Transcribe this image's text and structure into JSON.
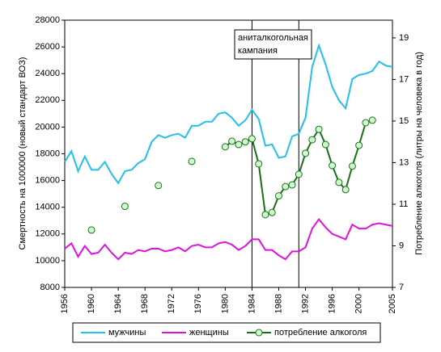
{
  "chart_data": {
    "type": "line",
    "ylabel": "Смертность на 1000000 (новый стандарт ВОЗ)",
    "y2label": "Потребление алкоголя (литры на человека в год)",
    "x": [
      1956,
      1957,
      1958,
      1959,
      1960,
      1961,
      1962,
      1963,
      1964,
      1965,
      1966,
      1967,
      1968,
      1969,
      1970,
      1971,
      1972,
      1973,
      1974,
      1975,
      1976,
      1977,
      1978,
      1979,
      1980,
      1981,
      1982,
      1983,
      1984,
      1985,
      1986,
      1987,
      1988,
      1989,
      1990,
      1991,
      1992,
      1993,
      1994,
      1995,
      1996,
      1997,
      1998,
      1999,
      2000,
      2001,
      2002,
      2003,
      2004,
      2005
    ],
    "xlim": [
      1956,
      2005
    ],
    "xticks": [
      1956,
      1960,
      1964,
      1968,
      1972,
      1976,
      1980,
      1984,
      1988,
      1992,
      1996,
      2000,
      2005
    ],
    "ylim": [
      8000,
      28000
    ],
    "yticks": [
      8000,
      10000,
      12000,
      14000,
      16000,
      18000,
      20000,
      22000,
      24000,
      26000,
      28000
    ],
    "y2lim": [
      7,
      19.85
    ],
    "y2ticks": [
      7,
      9,
      11,
      13,
      15,
      17,
      19
    ],
    "vlines": [
      1984,
      1991
    ],
    "annotation": [
      "аниталкогольная",
      "кампания"
    ],
    "legend": "bottom",
    "series": [
      {
        "name": "мужчины",
        "color": "#22c0ec",
        "values": [
          17400,
          18200,
          16700,
          17800,
          16800,
          16800,
          17400,
          16500,
          15800,
          16700,
          16800,
          17300,
          17600,
          18900,
          19400,
          19200,
          19400,
          19500,
          19200,
          20100,
          20100,
          20400,
          20400,
          21000,
          21100,
          20700,
          20100,
          20500,
          21300,
          20600,
          18600,
          18700,
          17700,
          17800,
          19300,
          19500,
          20700,
          24500,
          26100,
          24700,
          23000,
          22000,
          21400,
          23600,
          23900,
          24000,
          24200,
          24900,
          24600,
          24500
        ]
      },
      {
        "name": "женщины",
        "color": "#e010e0",
        "values": [
          10900,
          11300,
          10300,
          11100,
          10500,
          10600,
          11200,
          10600,
          10100,
          10600,
          10500,
          10800,
          10700,
          10900,
          10900,
          10700,
          10800,
          11000,
          10700,
          11100,
          11200,
          11000,
          11000,
          11300,
          11400,
          11200,
          10800,
          11100,
          11600,
          11600,
          10800,
          10800,
          10400,
          10100,
          10700,
          10700,
          11000,
          12400,
          13100,
          12500,
          12000,
          11800,
          11600,
          12700,
          12400,
          12400,
          12700,
          12800,
          12700,
          12600
        ]
      },
      {
        "name": "потребление алкоголя",
        "color": "#1a6e1a",
        "marker_fill": "#ccffcc",
        "axis": "y2",
        "marker": true,
        "values": [
          null,
          null,
          null,
          null,
          9.76,
          null,
          null,
          null,
          null,
          10.9,
          null,
          null,
          null,
          null,
          11.9,
          null,
          null,
          null,
          null,
          13.06,
          null,
          null,
          null,
          null,
          13.76,
          14.03,
          13.87,
          14.0,
          14.15,
          12.94,
          10.5,
          10.6,
          11.4,
          11.85,
          11.93,
          12.44,
          13.45,
          14.1,
          14.6,
          13.87,
          12.86,
          12.05,
          11.7,
          12.83,
          13.83,
          14.92,
          15.04,
          null,
          null,
          null
        ]
      }
    ]
  }
}
